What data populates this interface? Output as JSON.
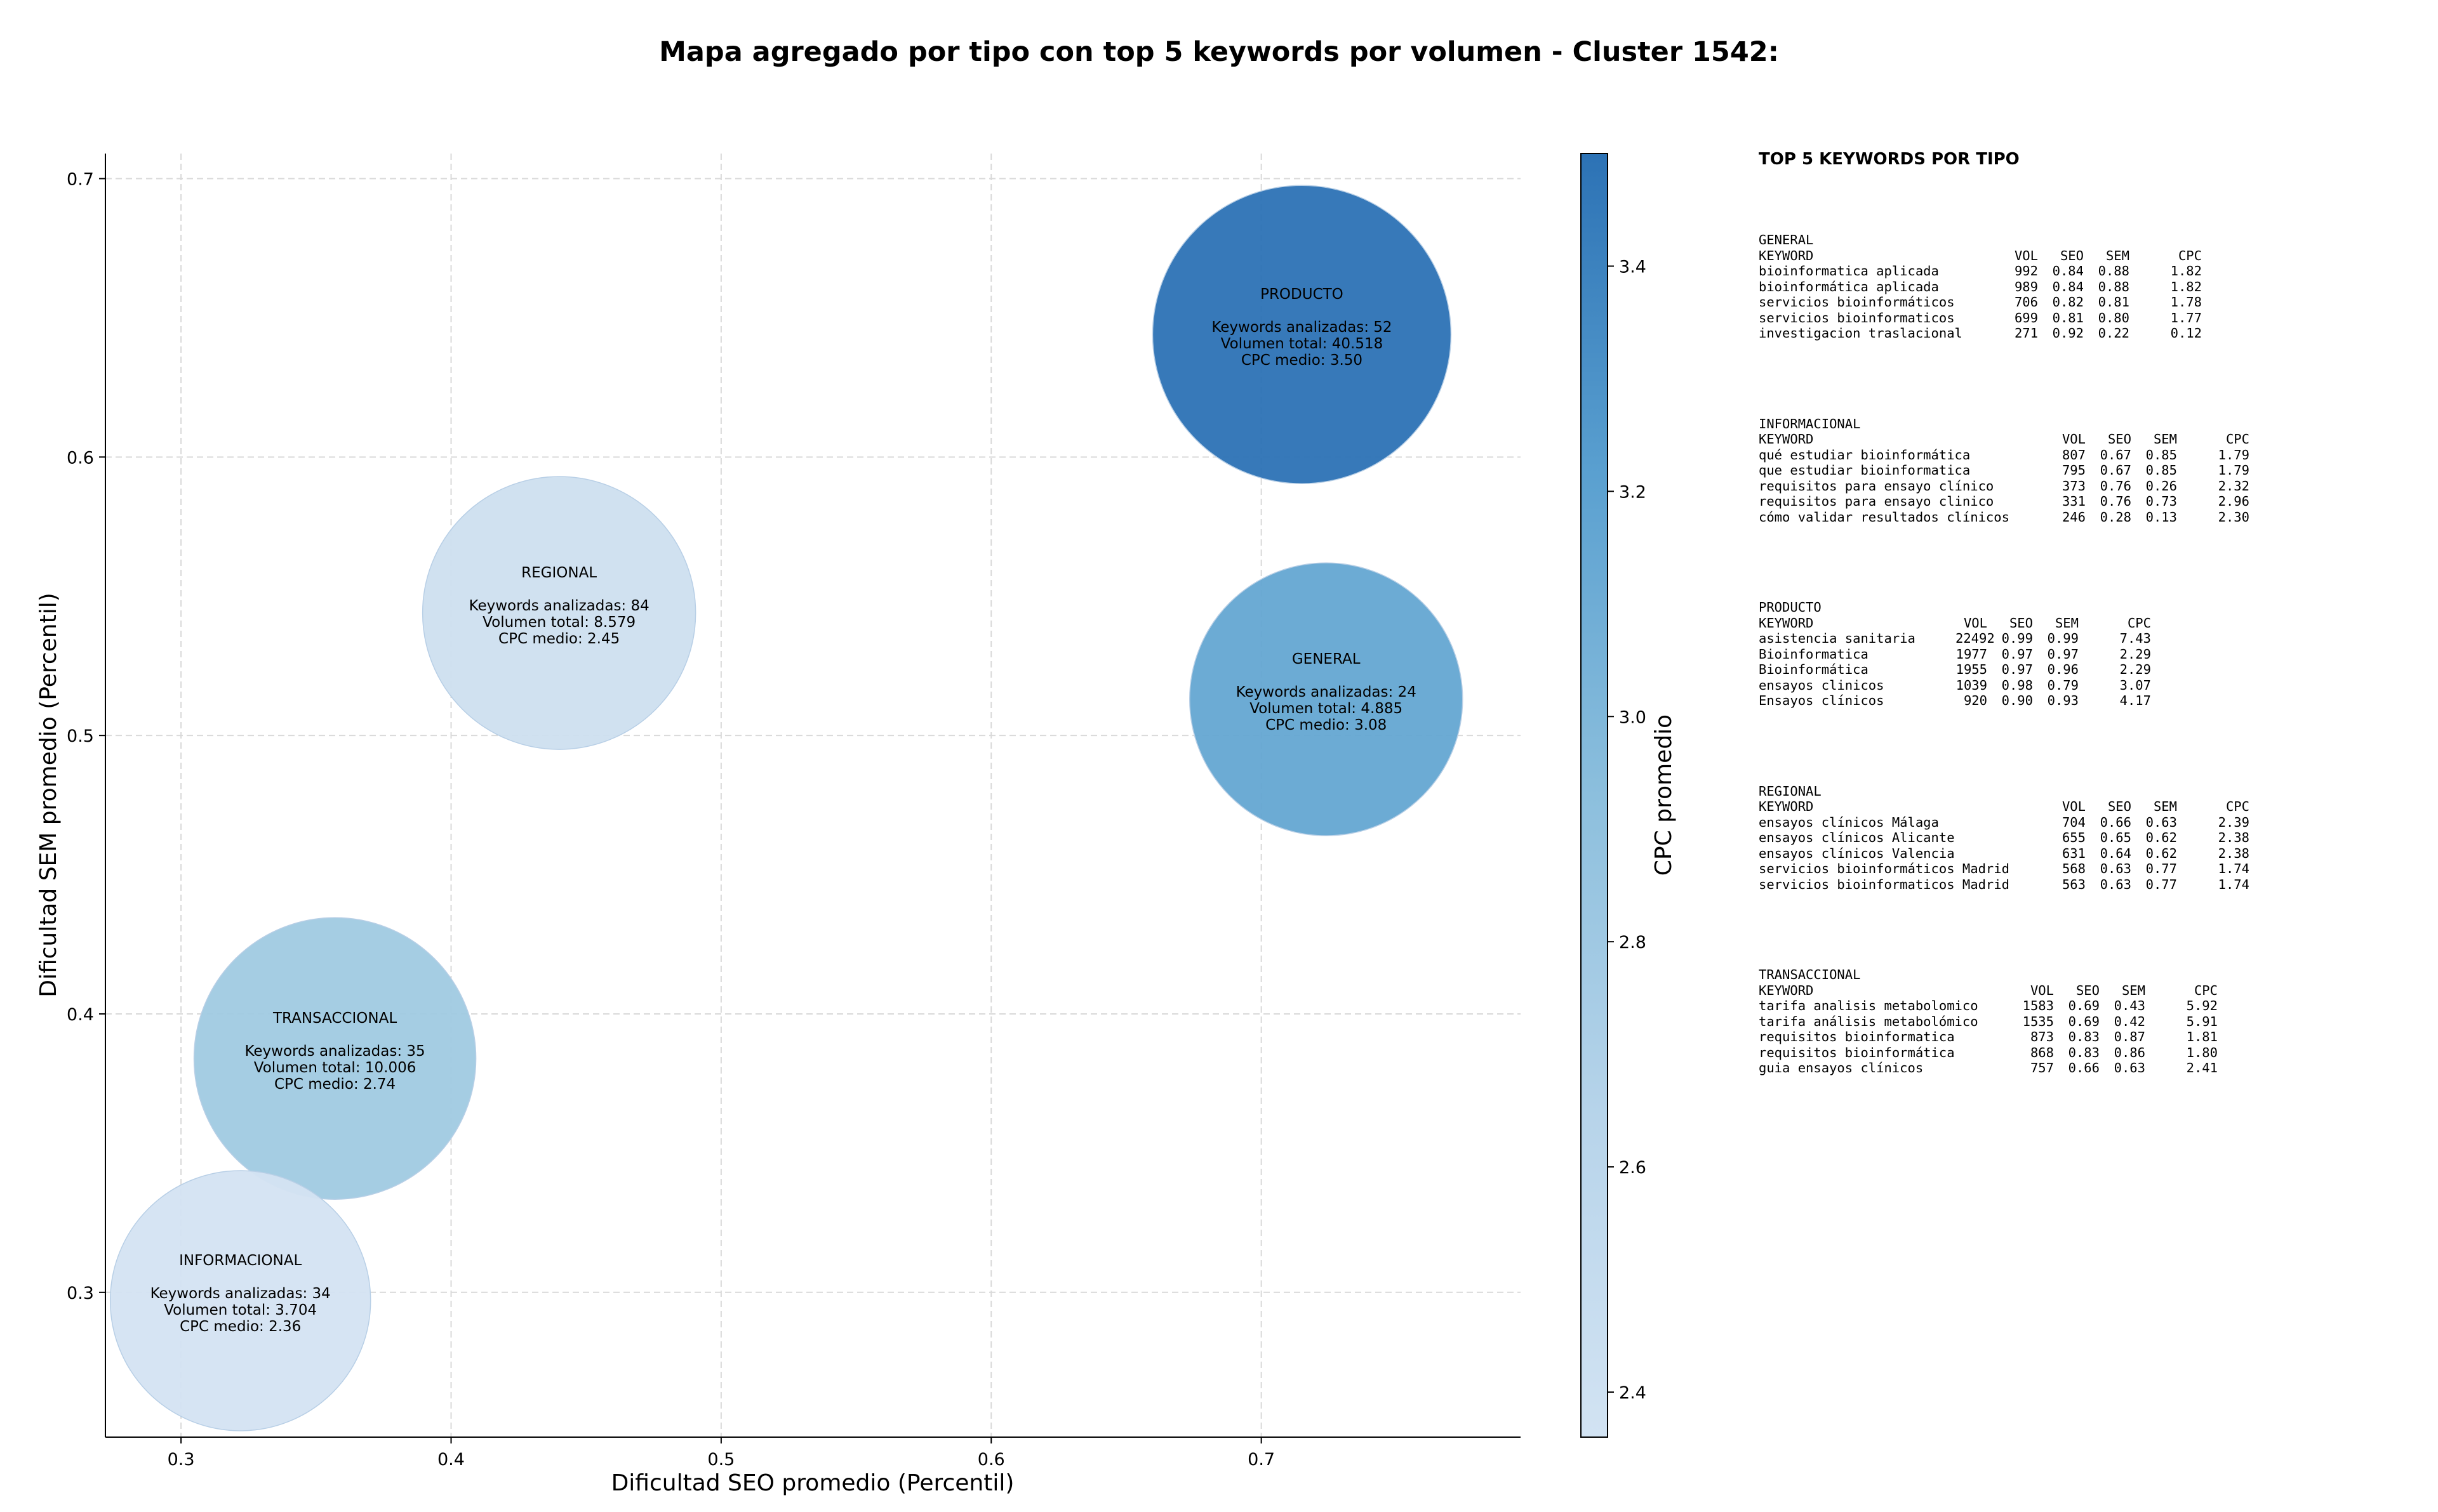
{
  "chart_data": {
    "type": "scatter",
    "title": "Mapa agregado por tipo con top 5 keywords por volumen - Cluster 1542:",
    "xlabel": "Dificultad SEO promedio (Percentil)",
    "ylabel": "Dificultad SEM promedio (Percentil)",
    "xlim": [
      0.272,
      0.796
    ],
    "ylim": [
      0.248,
      0.709
    ],
    "xticks": [
      0.3,
      0.4,
      0.5,
      0.6,
      0.7
    ],
    "yticks": [
      0.3,
      0.4,
      0.5,
      0.6,
      0.7
    ],
    "grid": true,
    "colorbar": {
      "label": "CPC promedio",
      "min": 2.36,
      "max": 3.5,
      "ticks": [
        2.4,
        2.6,
        2.8,
        3.0,
        3.2,
        3.4
      ]
    },
    "points": [
      {
        "label": "PRODUCTO",
        "x": 0.715,
        "y": 0.644,
        "keywords_line": "Keywords analizadas: 52",
        "volume_line": "Volumen total: 40.518",
        "cpc_line": "CPC medio: 3.50",
        "cpc": 3.5,
        "color": "#2c72b5",
        "size": 235
      },
      {
        "label": "REGIONAL",
        "x": 0.44,
        "y": 0.544,
        "keywords_line": "Keywords analizadas: 84",
        "volume_line": "Volumen total: 8.579",
        "cpc_line": "CPC medio: 2.45",
        "cpc": 2.45,
        "color": "#cddfef",
        "size": 215
      },
      {
        "label": "GENERAL",
        "x": 0.724,
        "y": 0.513,
        "keywords_line": "Keywords analizadas: 24",
        "volume_line": "Volumen total: 4.885",
        "cpc_line": "CPC medio: 3.08",
        "cpc": 3.08,
        "color": "#64a6d2",
        "size": 215
      },
      {
        "label": "TRANSACCIONAL",
        "x": 0.357,
        "y": 0.384,
        "keywords_line": "Keywords analizadas: 35",
        "volume_line": "Volumen total: 10.006",
        "cpc_line": "CPC medio: 2.74",
        "cpc": 2.74,
        "color": "#a0cae1",
        "size": 222
      },
      {
        "label": "INFORMACIONAL",
        "x": 0.322,
        "y": 0.297,
        "keywords_line": "Keywords analizadas: 34",
        "volume_line": "Volumen total: 3.704",
        "cpc_line": "CPC medio: 2.36",
        "cpc": 2.36,
        "color": "#d4e3f2",
        "size": 205
      }
    ]
  },
  "side_panel": {
    "title": "TOP 5 KEYWORDS POR TIPO",
    "headers": {
      "keyword": "KEYWORD",
      "vol": "VOL",
      "seo": "SEO",
      "sem": "SEM",
      "cpc": "CPC"
    },
    "groups": [
      {
        "name": "GENERAL",
        "kw_width": 390,
        "rows": [
          {
            "keyword": "bioinformatica aplicada",
            "vol": "992",
            "seo": "0.84",
            "sem": "0.88",
            "cpc": "1.82"
          },
          {
            "keyword": "bioinformática aplicada",
            "vol": "989",
            "seo": "0.84",
            "sem": "0.88",
            "cpc": "1.82"
          },
          {
            "keyword": "servicios bioinformáticos",
            "vol": "706",
            "seo": "0.82",
            "sem": "0.81",
            "cpc": "1.78"
          },
          {
            "keyword": "servicios bioinformaticos",
            "vol": "699",
            "seo": "0.81",
            "sem": "0.80",
            "cpc": "1.77"
          },
          {
            "keyword": "investigacion traslacional",
            "vol": "271",
            "seo": "0.92",
            "sem": "0.22",
            "cpc": "0.12"
          }
        ]
      },
      {
        "name": "INFORMACIONAL",
        "kw_width": 465,
        "rows": [
          {
            "keyword": "qué estudiar bioinformática",
            "vol": "807",
            "seo": "0.67",
            "sem": "0.85",
            "cpc": "1.79"
          },
          {
            "keyword": "que estudiar bioinformatica",
            "vol": "795",
            "seo": "0.67",
            "sem": "0.85",
            "cpc": "1.79"
          },
          {
            "keyword": "requisitos para ensayo clínico",
            "vol": "373",
            "seo": "0.76",
            "sem": "0.26",
            "cpc": "2.32"
          },
          {
            "keyword": "requisitos para ensayo clinico",
            "vol": "331",
            "seo": "0.76",
            "sem": "0.73",
            "cpc": "2.96"
          },
          {
            "keyword": "cómo validar resultados clínicos",
            "vol": "246",
            "seo": "0.28",
            "sem": "0.13",
            "cpc": "2.30"
          }
        ]
      },
      {
        "name": "PRODUCTO",
        "kw_width": 310,
        "rows": [
          {
            "keyword": "asistencia sanitaria",
            "vol": "22492",
            "seo": "0.99",
            "sem": "0.99",
            "cpc": "7.43"
          },
          {
            "keyword": "Bioinformatica",
            "vol": "1977",
            "seo": "0.97",
            "sem": "0.97",
            "cpc": "2.29"
          },
          {
            "keyword": "Bioinformática",
            "vol": "1955",
            "seo": "0.97",
            "sem": "0.96",
            "cpc": "2.29"
          },
          {
            "keyword": "ensayos clinicos",
            "vol": "1039",
            "seo": "0.98",
            "sem": "0.79",
            "cpc": "3.07"
          },
          {
            "keyword": "Ensayos clínicos",
            "vol": "920",
            "seo": "0.90",
            "sem": "0.93",
            "cpc": "4.17"
          }
        ]
      },
      {
        "name": "REGIONAL",
        "kw_width": 465,
        "rows": [
          {
            "keyword": "ensayos clínicos Málaga",
            "vol": "704",
            "seo": "0.66",
            "sem": "0.63",
            "cpc": "2.39"
          },
          {
            "keyword": "ensayos clínicos Alicante",
            "vol": "655",
            "seo": "0.65",
            "sem": "0.62",
            "cpc": "2.38"
          },
          {
            "keyword": "ensayos clínicos Valencia",
            "vol": "631",
            "seo": "0.64",
            "sem": "0.62",
            "cpc": "2.38"
          },
          {
            "keyword": "servicios bioinformáticos Madrid",
            "vol": "568",
            "seo": "0.63",
            "sem": "0.77",
            "cpc": "1.74"
          },
          {
            "keyword": "servicios bioinformaticos Madrid",
            "vol": "563",
            "seo": "0.63",
            "sem": "0.77",
            "cpc": "1.74"
          }
        ]
      },
      {
        "name": "TRANSACCIONAL",
        "kw_width": 415,
        "rows": [
          {
            "keyword": "tarifa analisis metabolomico",
            "vol": "1583",
            "seo": "0.69",
            "sem": "0.43",
            "cpc": "5.92"
          },
          {
            "keyword": "tarifa análisis metabolómico",
            "vol": "1535",
            "seo": "0.69",
            "sem": "0.42",
            "cpc": "5.91"
          },
          {
            "keyword": "requisitos bioinformatica",
            "vol": "873",
            "seo": "0.83",
            "sem": "0.87",
            "cpc": "1.81"
          },
          {
            "keyword": "requisitos bioinformática",
            "vol": "868",
            "seo": "0.83",
            "sem": "0.86",
            "cpc": "1.80"
          },
          {
            "keyword": "guia ensayos clínicos",
            "vol": "757",
            "seo": "0.66",
            "sem": "0.63",
            "cpc": "2.41"
          }
        ]
      }
    ]
  }
}
